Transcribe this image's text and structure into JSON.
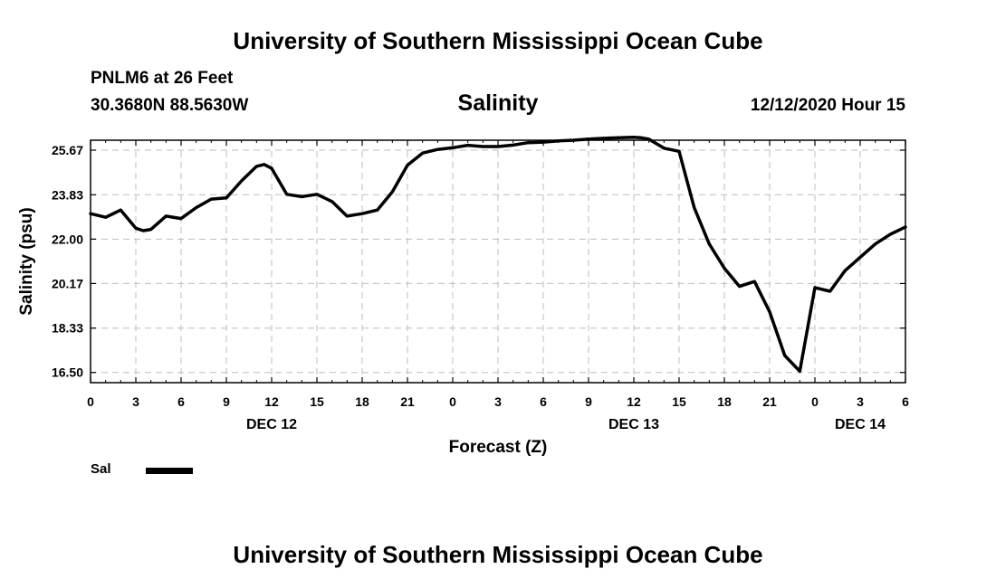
{
  "header": {
    "title": "University of Southern Mississippi Ocean Cube",
    "station": "PNLM6 at 26 Feet",
    "coordinates": "30.3680N 88.5630W",
    "chart_title": "Salinity",
    "timestamp": "12/12/2020 Hour 15"
  },
  "footer": {
    "title": "University of Southern Mississippi Ocean Cube"
  },
  "legend": {
    "label": "Sal",
    "color": "#000000"
  },
  "chart_data": {
    "type": "line",
    "title": "Salinity",
    "xlabel": "Forecast (Z)",
    "ylabel": "Salinity (psu)",
    "x_unit": "hours since 2020-12-12 00Z",
    "xlim": [
      0,
      54
    ],
    "ylim": [
      16.08,
      26.08
    ],
    "y_ticks": [
      16.5,
      18.33,
      20.17,
      22.0,
      23.83,
      25.67
    ],
    "y_tick_labels": [
      "16.50",
      "18.33",
      "20.17",
      "22.00",
      "23.83",
      "25.67"
    ],
    "x_ticks": [
      0,
      3,
      6,
      9,
      12,
      15,
      18,
      21,
      24,
      27,
      30,
      33,
      36,
      39,
      42,
      45,
      48,
      51,
      54
    ],
    "x_tick_labels": [
      "0",
      "3",
      "6",
      "9",
      "12",
      "15",
      "18",
      "21",
      "0",
      "3",
      "6",
      "9",
      "12",
      "15",
      "18",
      "21",
      "0",
      "3",
      "6"
    ],
    "day_labels": [
      {
        "x": 12,
        "label": "DEC 12"
      },
      {
        "x": 36,
        "label": "DEC 13"
      },
      {
        "x": 51,
        "label": "DEC 14"
      }
    ],
    "grid": true,
    "series": [
      {
        "name": "Sal",
        "x": [
          0,
          1,
          2,
          3,
          3.5,
          4,
          5,
          6,
          7,
          8,
          9,
          10,
          11,
          11.5,
          12,
          13,
          14,
          15,
          16,
          17,
          18,
          19,
          20,
          21,
          22,
          23,
          24,
          25,
          26,
          27,
          28,
          29,
          30,
          31,
          32,
          33,
          34,
          35,
          36,
          36.5,
          37,
          38,
          39,
          40,
          41,
          42,
          43,
          44,
          45,
          46,
          47,
          48,
          49,
          50,
          51,
          52,
          53,
          54
        ],
        "values": [
          23.05,
          22.9,
          23.2,
          22.45,
          22.35,
          22.4,
          22.95,
          22.85,
          23.3,
          23.65,
          23.7,
          24.4,
          25.0,
          25.08,
          24.92,
          23.85,
          23.75,
          23.85,
          23.55,
          22.95,
          23.05,
          23.2,
          23.95,
          25.05,
          25.55,
          25.7,
          25.77,
          25.87,
          25.82,
          25.82,
          25.88,
          25.98,
          26.0,
          26.05,
          26.08,
          26.13,
          26.16,
          26.18,
          26.2,
          26.18,
          26.12,
          25.75,
          25.62,
          23.3,
          21.8,
          20.8,
          20.05,
          20.25,
          19.0,
          17.2,
          16.55,
          20.0,
          19.85,
          20.7,
          21.25,
          21.8,
          22.2,
          22.5
        ]
      }
    ]
  }
}
